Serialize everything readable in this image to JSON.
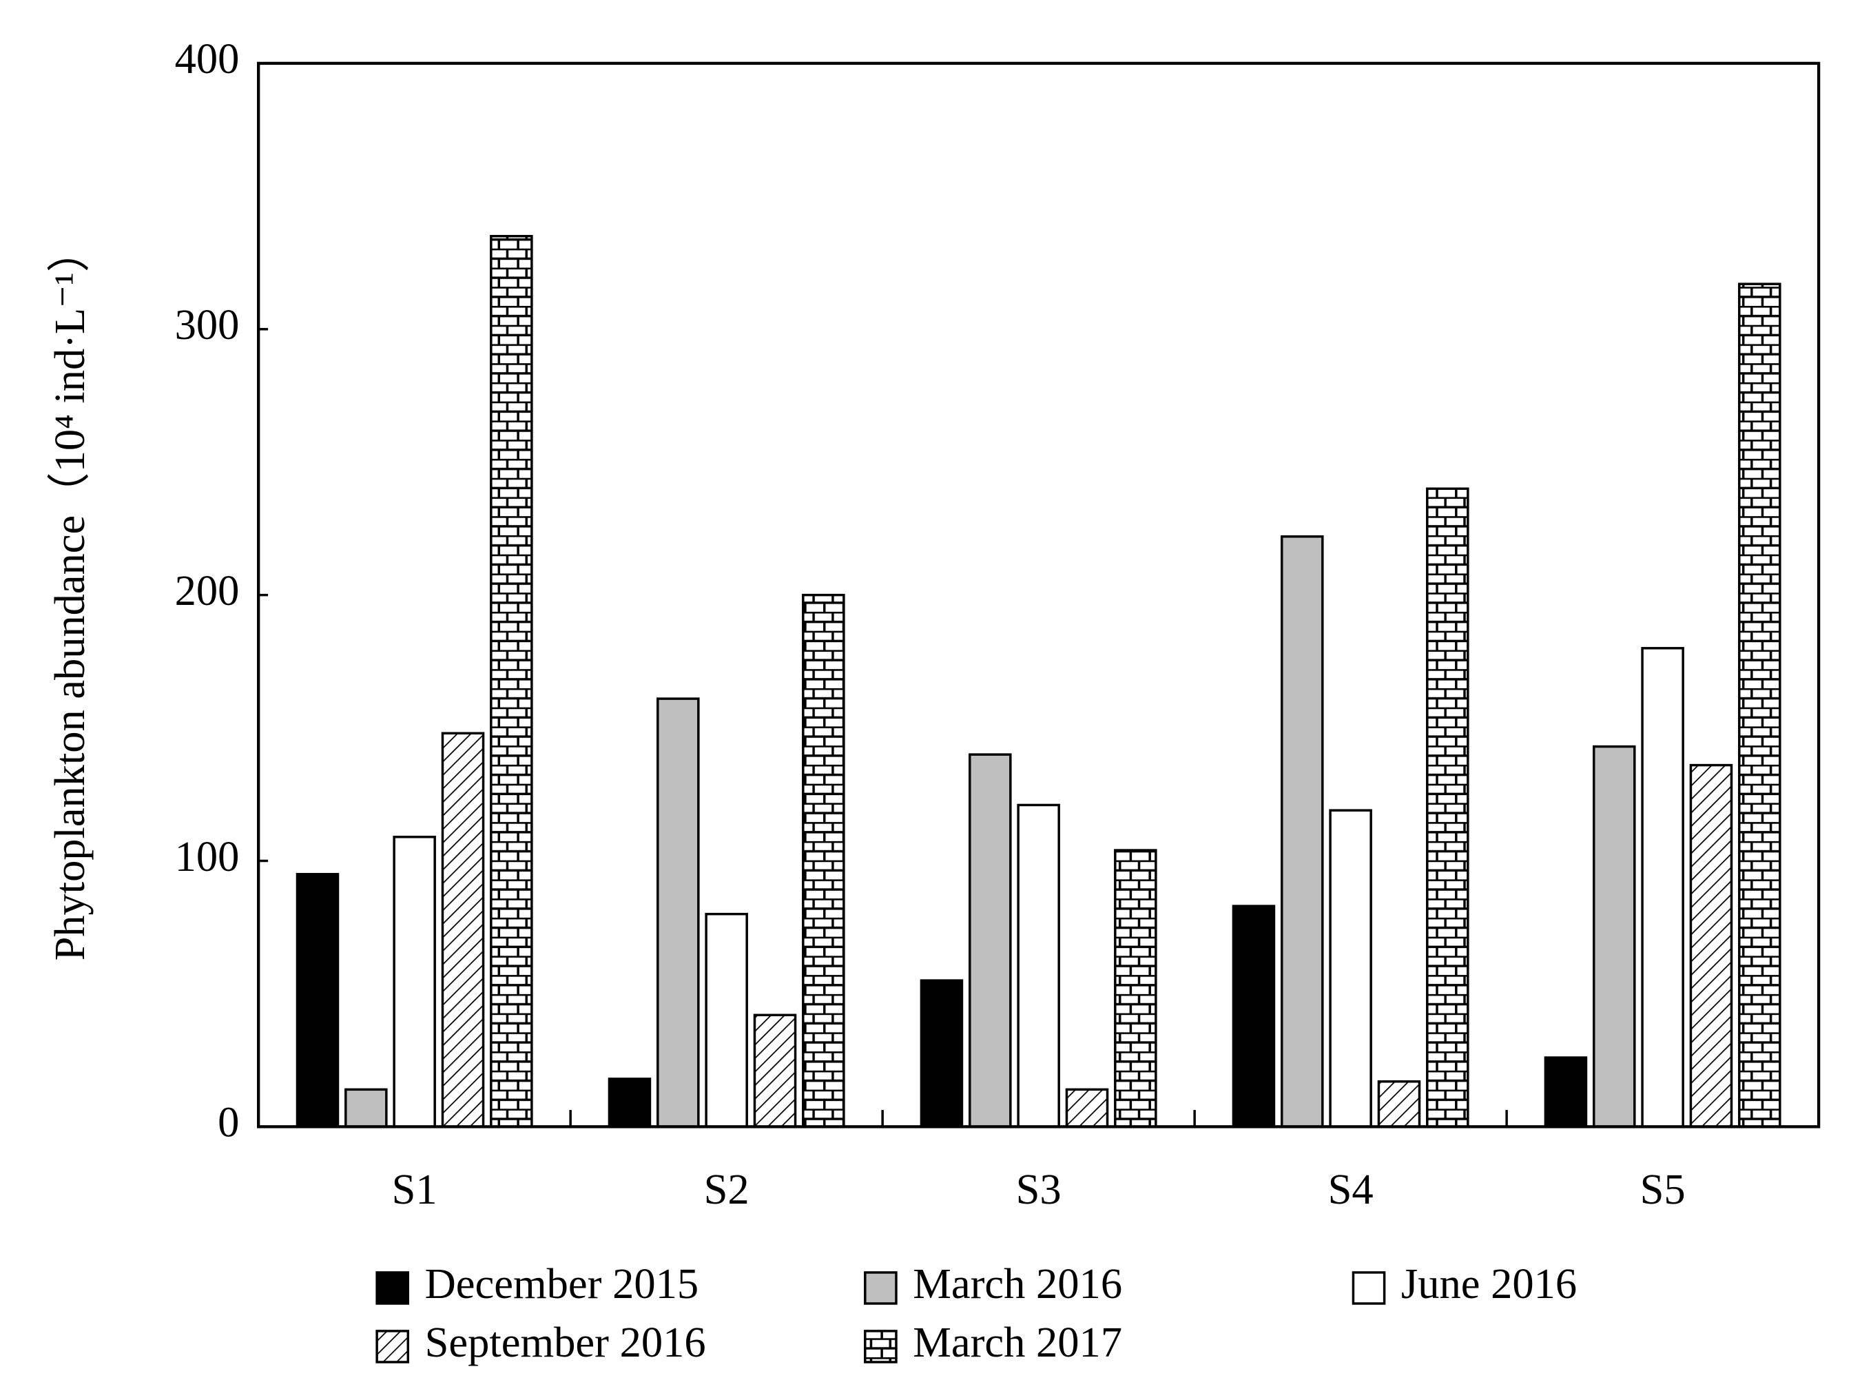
{
  "chart_data": {
    "type": "bar",
    "y_label": "Phytoplankton abundance（10⁴ ind·L⁻¹）",
    "categories": [
      "S1",
      "S2",
      "S3",
      "S4",
      "S5"
    ],
    "series": [
      {
        "name": "December 2015",
        "color": "#000000",
        "values": [
          95,
          18,
          55,
          83,
          26
        ]
      },
      {
        "name": "March 2016",
        "color": "#bfbfbf",
        "values": [
          14,
          161,
          140,
          222,
          143
        ]
      },
      {
        "name": "June 2016",
        "color": "#ffffff",
        "values": [
          109,
          80,
          121,
          119,
          180
        ]
      },
      {
        "name": "September 2016",
        "color": "#ffffff",
        "pattern": "diagonal",
        "values": [
          148,
          42,
          14,
          17,
          136
        ]
      },
      {
        "name": "March 2017",
        "color": "#ffffff",
        "pattern": "brick",
        "values": [
          335,
          200,
          104,
          240,
          317
        ]
      }
    ],
    "ylim": [
      0,
      400
    ],
    "yticks": [
      0,
      100,
      200,
      300,
      400
    ],
    "grid": false,
    "legend": "bottom"
  }
}
